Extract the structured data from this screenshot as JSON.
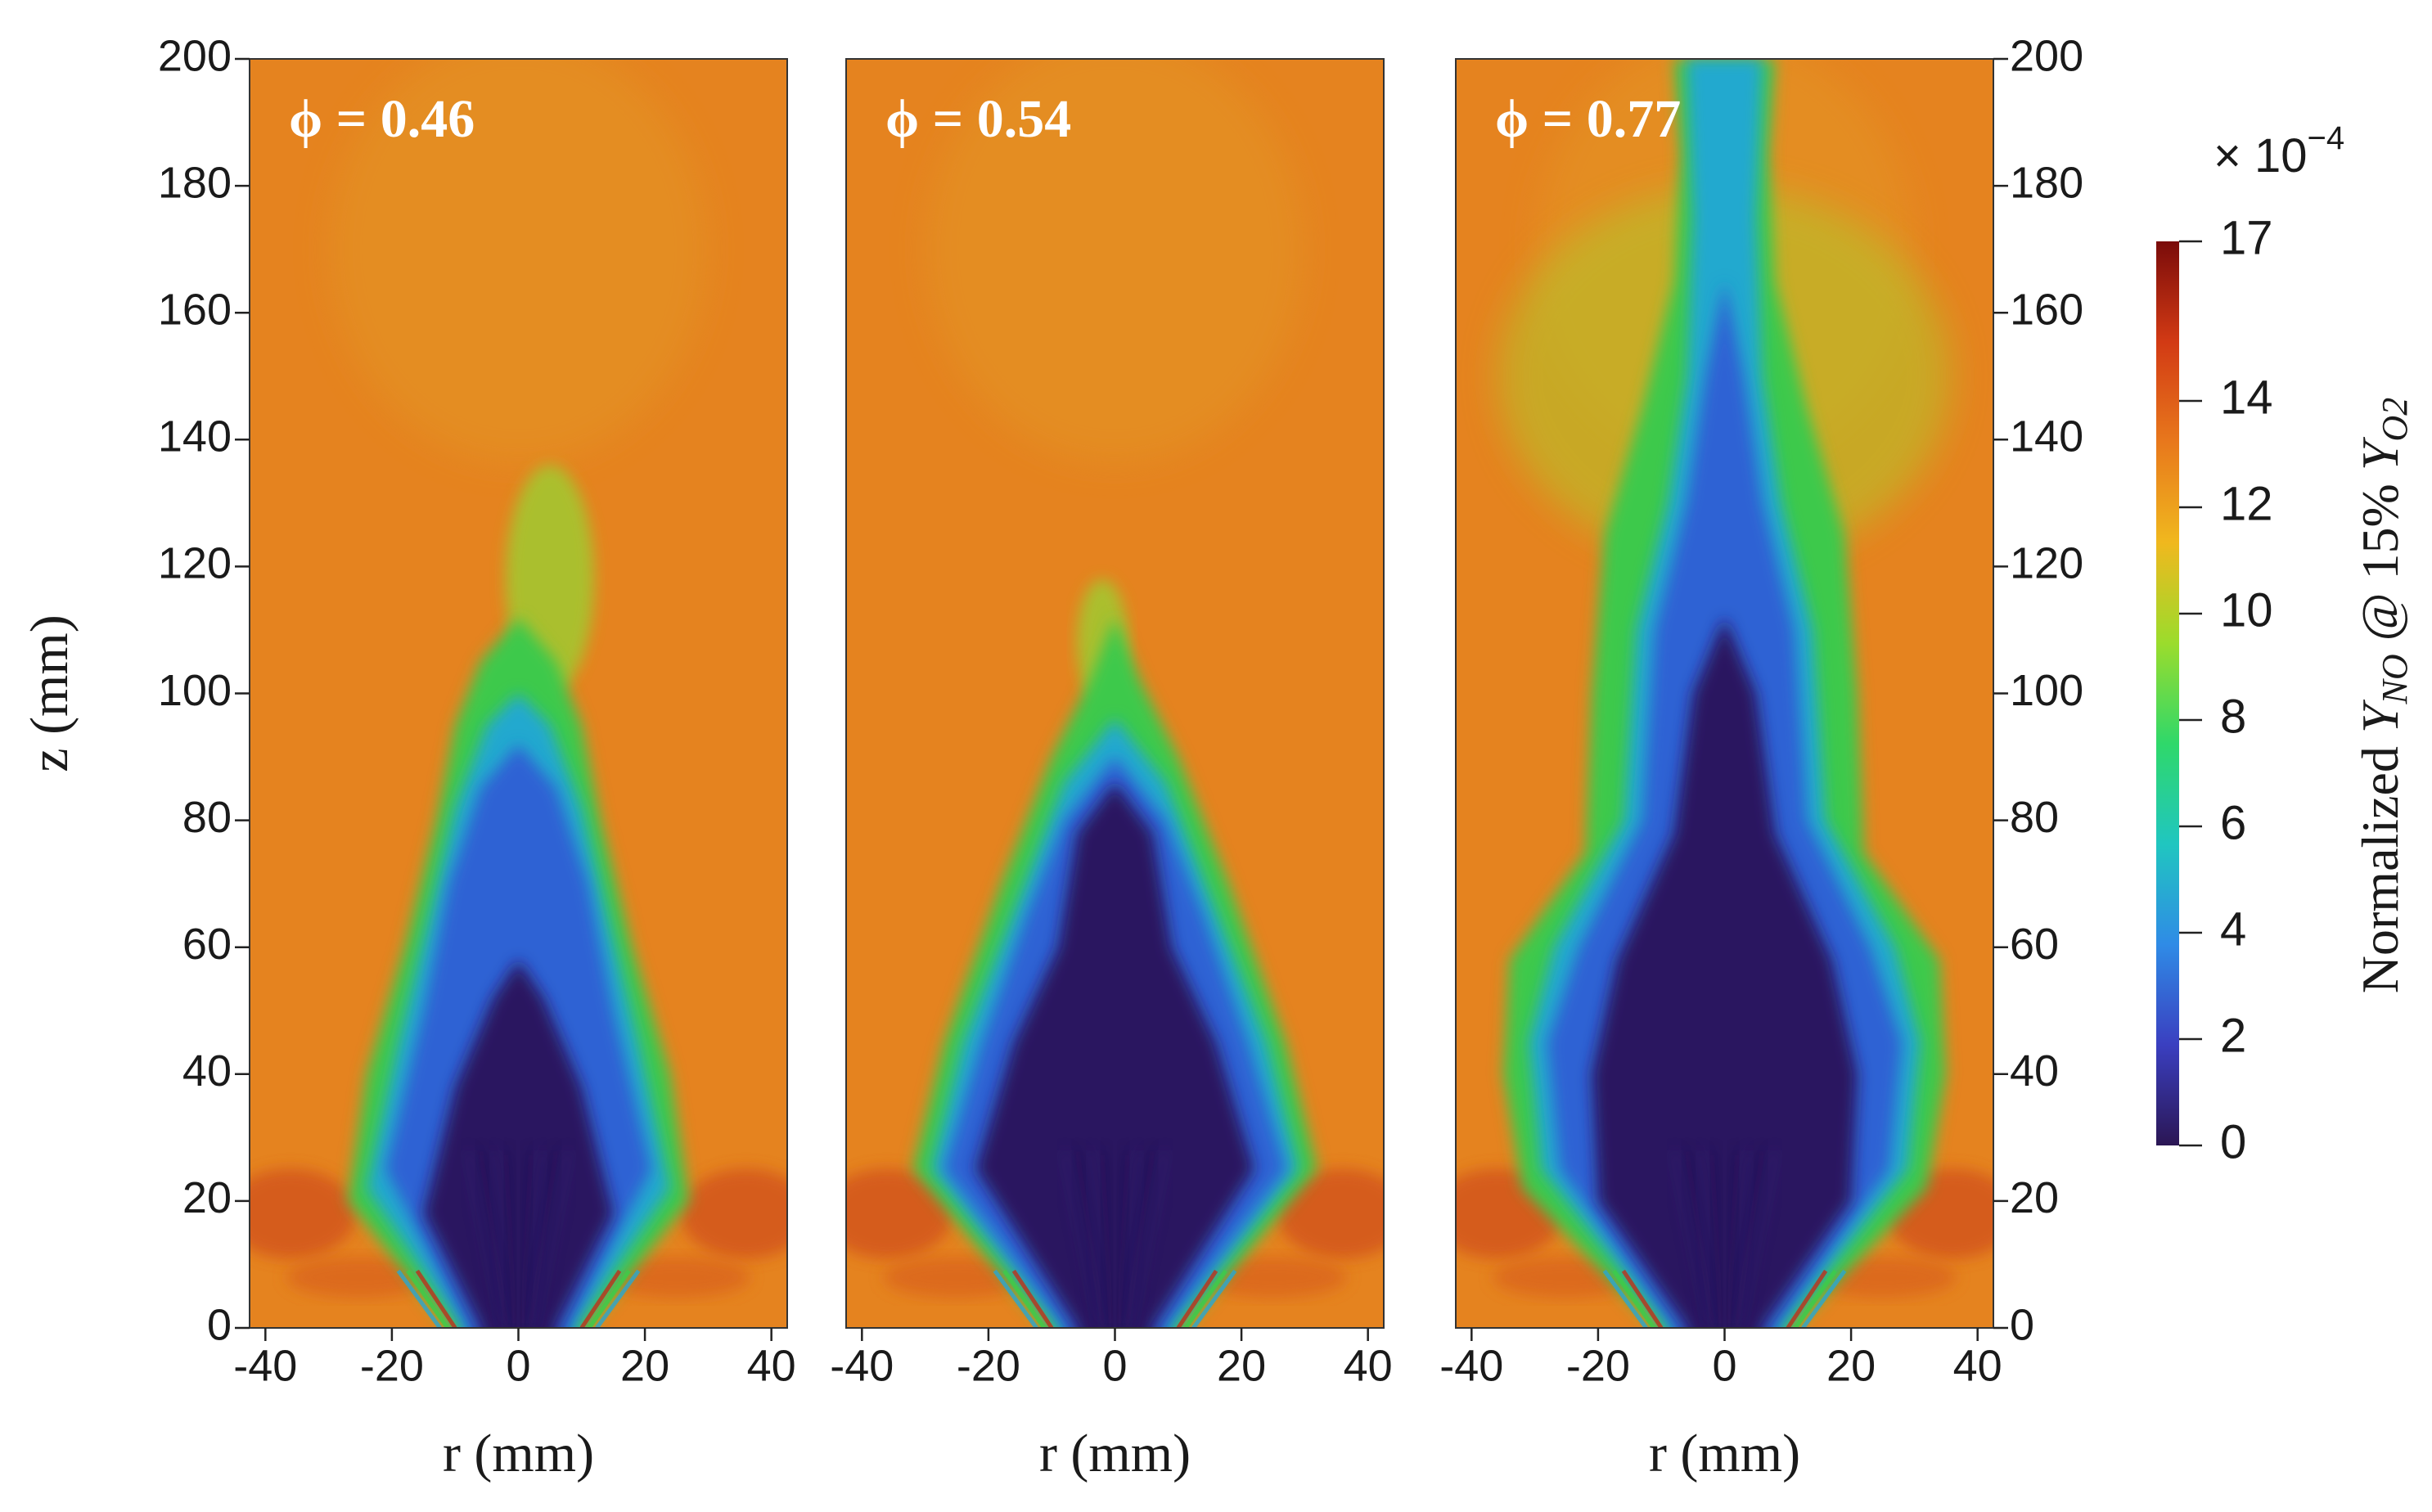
{
  "chart_data": [
    {
      "type": "heatmap",
      "title": "ϕ = 0.46",
      "xlabel": "r (mm)",
      "ylabel": "z (mm)",
      "xlim": [
        -42.5,
        42.5
      ],
      "xticks": [
        -40,
        -20,
        0,
        20,
        40
      ],
      "ylim": [
        0,
        200
      ],
      "yticks": [
        0,
        20,
        40,
        60,
        80,
        100,
        120,
        140,
        160,
        180,
        200
      ],
      "y_axis_side": "left"
    },
    {
      "type": "heatmap",
      "title": "ϕ = 0.54",
      "xlabel": "r (mm)",
      "xlim": [
        -42.5,
        42.5
      ],
      "xticks": [
        -40,
        -20,
        0,
        20,
        40
      ],
      "ylim": [
        0,
        200
      ]
    },
    {
      "type": "heatmap",
      "title": "ϕ = 0.77",
      "xlabel": "r (mm)",
      "xlim": [
        -42.5,
        42.5
      ],
      "xticks": [
        -40,
        -20,
        0,
        20,
        40
      ],
      "ylim": [
        0,
        200
      ],
      "yticks": [
        0,
        20,
        40,
        60,
        80,
        100,
        120,
        140,
        160,
        180,
        200
      ],
      "y_axis_side": "right"
    }
  ],
  "colorbar": {
    "label": [
      "Normalized ",
      "Y",
      "NO",
      " @ 15% ",
      "Y",
      "O2"
    ],
    "multiplier": [
      "× 10",
      "−4"
    ],
    "lim": [
      0,
      17
    ],
    "ticks": [
      0,
      2,
      4,
      6,
      8,
      10,
      12,
      14,
      17
    ],
    "colors": [
      "#2b1654",
      "#3a3fc0",
      "#2f8be6",
      "#20c6c0",
      "#2fd86a",
      "#9bdc2c",
      "#f0b81e",
      "#e8781c",
      "#d23a14",
      "#7a0b0a"
    ]
  }
}
